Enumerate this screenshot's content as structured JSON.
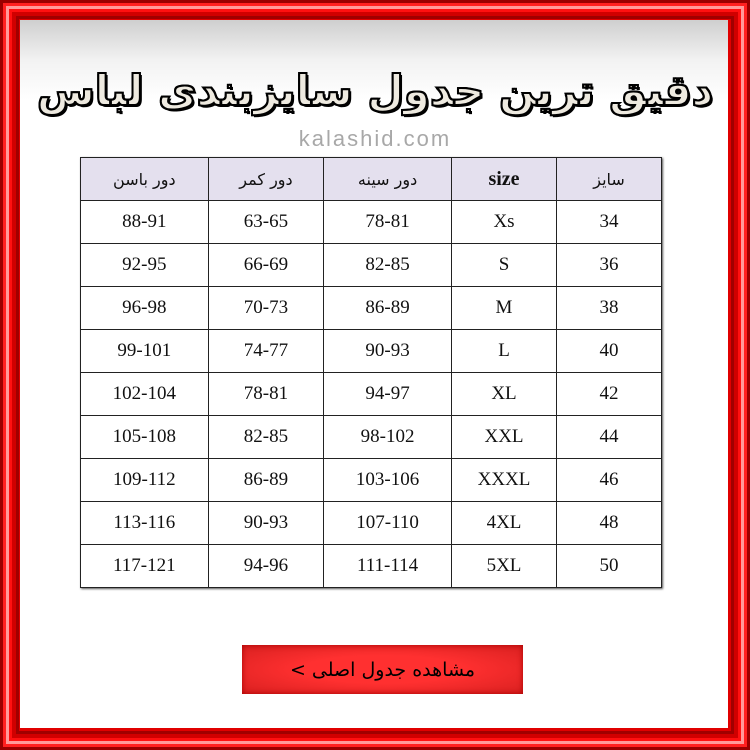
{
  "title": "دقیق ترین جدول سایزبندی لباس",
  "watermark": "kalashid.com",
  "table": {
    "headers": [
      "سایز",
      "size",
      "دور سینه",
      "دور کمر",
      "دور باسن"
    ],
    "rows": [
      [
        "34",
        "Xs",
        "78-81",
        "63-65",
        "88-91"
      ],
      [
        "36",
        "S",
        "82-85",
        "66-69",
        "92-95"
      ],
      [
        "38",
        "M",
        "86-89",
        "70-73",
        "96-98"
      ],
      [
        "40",
        "L",
        "90-93",
        "74-77",
        "99-101"
      ],
      [
        "42",
        "XL",
        "94-97",
        "78-81",
        "102-104"
      ],
      [
        "44",
        "XXL",
        "98-102",
        "82-85",
        "105-108"
      ],
      [
        "46",
        "XXXL",
        "103-106",
        "86-89",
        "109-112"
      ],
      [
        "48",
        "4XL",
        "107-110",
        "90-93",
        "113-116"
      ],
      [
        "50",
        "5XL",
        "111-114",
        "94-96",
        "117-121"
      ]
    ]
  },
  "button": {
    "label": "مشاهده جدول اصلی >"
  },
  "colors": {
    "frame": "#e00000",
    "header_bg": "#e4e0ee",
    "button": "#ff3030"
  }
}
